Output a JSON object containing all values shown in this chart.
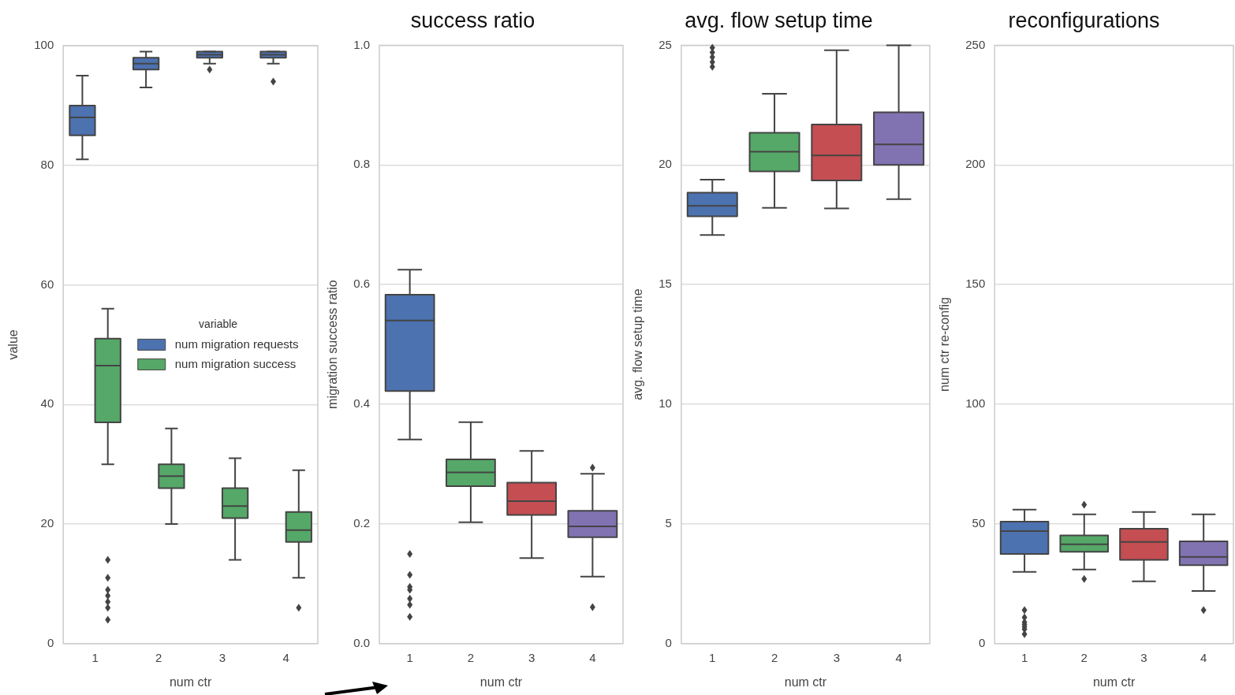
{
  "chart_data": [
    {
      "type": "box",
      "xlabel": "num ctr",
      "ylabel": "value",
      "categories": [
        "1",
        "2",
        "3",
        "4"
      ],
      "ylim": [
        0,
        100
      ],
      "yticks": [
        0,
        20,
        40,
        60,
        80,
        100
      ],
      "grid": "y",
      "marker": "diamond",
      "legend": "center",
      "legend_title": "variable",
      "series": [
        {
          "name": "num migration requests",
          "color": "#4c72b0",
          "boxes": [
            {
              "low": 81,
              "q1": 85,
              "median": 88,
              "q3": 90,
              "high": 95
            },
            {
              "low": 93,
              "q1": 96,
              "median": 97,
              "q3": 98,
              "high": 99
            },
            {
              "low": 97,
              "q1": 98,
              "median": 98.5,
              "q3": 99,
              "high": 99,
              "outliers": [
                96
              ]
            },
            {
              "low": 97,
              "q1": 98,
              "median": 98.5,
              "q3": 99,
              "high": 99,
              "outliers": [
                94
              ]
            }
          ]
        },
        {
          "name": "num migration success",
          "color": "#55a868",
          "boxes": [
            {
              "low": 30,
              "q1": 37,
              "median": 46.5,
              "q3": 51,
              "high": 56,
              "outliers": [
                14,
                11,
                9,
                8,
                7,
                6,
                4
              ]
            },
            {
              "low": 20,
              "q1": 26,
              "median": 28,
              "q3": 30,
              "high": 36
            },
            {
              "low": 14,
              "q1": 21,
              "median": 23,
              "q3": 26,
              "high": 31
            },
            {
              "low": 11,
              "q1": 17,
              "median": 19,
              "q3": 22,
              "high": 29,
              "outliers": [
                6
              ]
            }
          ]
        }
      ]
    },
    {
      "type": "box",
      "title": "success ratio",
      "xlabel": "num ctr",
      "ylabel": "migration success ratio",
      "categories": [
        "1",
        "2",
        "3",
        "4"
      ],
      "ylim": [
        0,
        1
      ],
      "yticks": [
        {
          "value": 0,
          "label": "0.0"
        },
        0.2,
        0.4,
        0.6,
        0.8,
        {
          "value": 1,
          "label": "1.0"
        }
      ],
      "grid": "y",
      "marker": "diamond",
      "colors": [
        "#4c72b0",
        "#55a868",
        "#c44e52",
        "#8172b2"
      ],
      "boxes": [
        {
          "low": 0.341,
          "q1": 0.422,
          "median": 0.54,
          "q3": 0.583,
          "high": 0.625,
          "outliers": [
            0.15,
            0.115,
            0.095,
            0.09,
            0.075,
            0.065,
            0.045
          ]
        },
        {
          "low": 0.203,
          "q1": 0.263,
          "median": 0.286,
          "q3": 0.308,
          "high": 0.37
        },
        {
          "low": 0.143,
          "q1": 0.215,
          "median": 0.238,
          "q3": 0.269,
          "high": 0.322
        },
        {
          "low": 0.112,
          "q1": 0.178,
          "median": 0.196,
          "q3": 0.222,
          "high": 0.284,
          "outliers": [
            0.294,
            0.061
          ]
        }
      ]
    },
    {
      "type": "box",
      "title": "avg. flow setup time",
      "xlabel": "num ctr",
      "ylabel": "avg. flow setup time",
      "categories": [
        "1",
        "2",
        "3",
        "4"
      ],
      "ylim": [
        0,
        25
      ],
      "yticks": [
        0,
        5,
        10,
        15,
        20,
        25
      ],
      "grid": "y",
      "marker": "diamond",
      "colors": [
        "#4c72b0",
        "#55a868",
        "#c44e52",
        "#8172b2"
      ],
      "boxes": [
        {
          "low": 17.07,
          "q1": 17.85,
          "median": 18.29,
          "q3": 18.84,
          "high": 19.38,
          "outliers": [
            24.9,
            24.7,
            24.5,
            24.3,
            24.1
          ]
        },
        {
          "low": 18.21,
          "q1": 19.73,
          "median": 20.55,
          "q3": 21.34,
          "high": 22.97
        },
        {
          "low": 18.18,
          "q1": 19.35,
          "median": 20.4,
          "q3": 21.69,
          "high": 24.79
        },
        {
          "low": 18.57,
          "q1": 20.0,
          "median": 20.86,
          "q3": 22.2,
          "high": 25
        }
      ]
    },
    {
      "type": "box",
      "title": "reconfigurations",
      "xlabel": "num ctr",
      "ylabel": "num ctr re-config",
      "categories": [
        "1",
        "2",
        "3",
        "4"
      ],
      "ylim": [
        0,
        250
      ],
      "yticks": [
        0,
        50,
        100,
        150,
        200,
        250
      ],
      "grid": "y",
      "marker": "diamond",
      "colors": [
        "#4c72b0",
        "#55a868",
        "#c44e52",
        "#8172b2"
      ],
      "boxes": [
        {
          "low": 30,
          "q1": 37.5,
          "median": 47,
          "q3": 51,
          "high": 56,
          "outliers": [
            14,
            11,
            9,
            8,
            7,
            6,
            4
          ]
        },
        {
          "low": 31,
          "q1": 38.4,
          "median": 41.5,
          "q3": 45.2,
          "high": 54,
          "outliers": [
            58,
            27
          ]
        },
        {
          "low": 26,
          "q1": 35,
          "median": 42.5,
          "q3": 48,
          "high": 55
        },
        {
          "low": 22,
          "q1": 32.8,
          "median": 36.2,
          "q3": 42.7,
          "high": 54,
          "outliers": [
            14
          ]
        }
      ]
    }
  ]
}
